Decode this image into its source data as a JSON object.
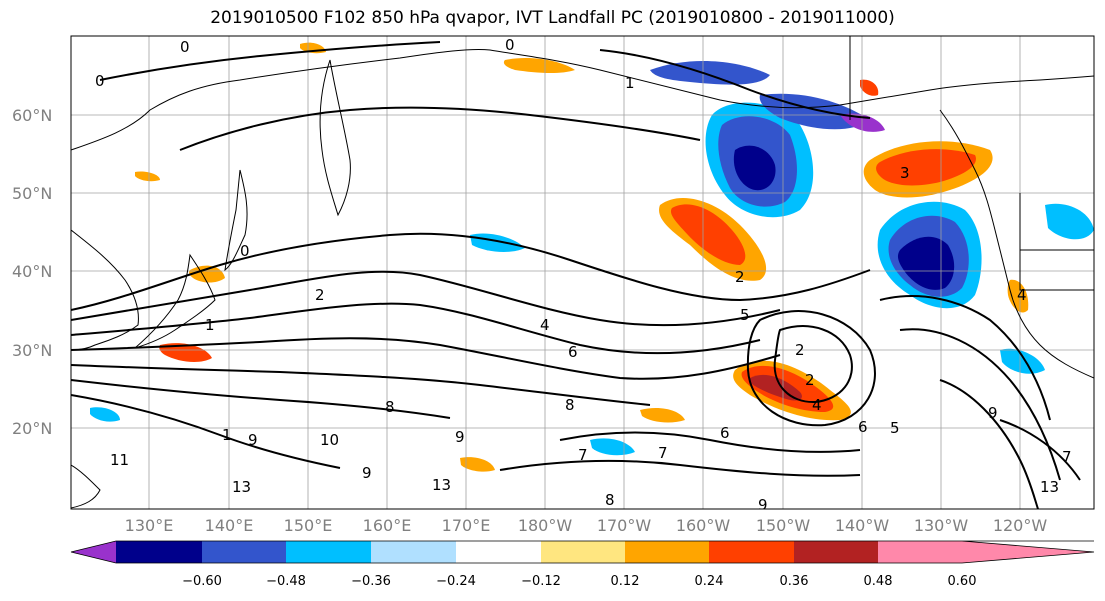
{
  "title": "2019010500 F102 850 hPa qvapor, IVT Landfall PC (2019010800 - 2019011000)",
  "lat_labels": [
    "60°N",
    "50°N",
    "40°N",
    "30°N",
    "20°N"
  ],
  "lon_labels": [
    "130°E",
    "140°E",
    "150°E",
    "160°E",
    "170°E",
    "180°W",
    "170°W",
    "160°W",
    "150°W",
    "140°W",
    "130°W",
    "120°W"
  ],
  "colorbar": {
    "ticks": [
      "−0.60",
      "−0.48",
      "−0.36",
      "−0.24",
      "−0.12",
      "0.12",
      "0.24",
      "0.36",
      "0.48",
      "0.60"
    ],
    "colors": [
      "#9932cc",
      "#00008b",
      "#3355cc",
      "#00bfff",
      "#b0e0ff",
      "#ffffff",
      "#ffe680",
      "#ffa500",
      "#ff4000",
      "#b22222",
      "#ff88aa"
    ]
  },
  "contour_labels": [
    "0",
    "0",
    "0",
    "0",
    "1",
    "1",
    "1",
    "2",
    "2",
    "2",
    "2",
    "3",
    "4",
    "4",
    "4",
    "5",
    "5",
    "6",
    "6",
    "6",
    "7",
    "7",
    "7",
    "8",
    "8",
    "8",
    "9",
    "9",
    "9",
    "9",
    "9",
    "10",
    "11",
    "13",
    "13",
    "13"
  ]
}
